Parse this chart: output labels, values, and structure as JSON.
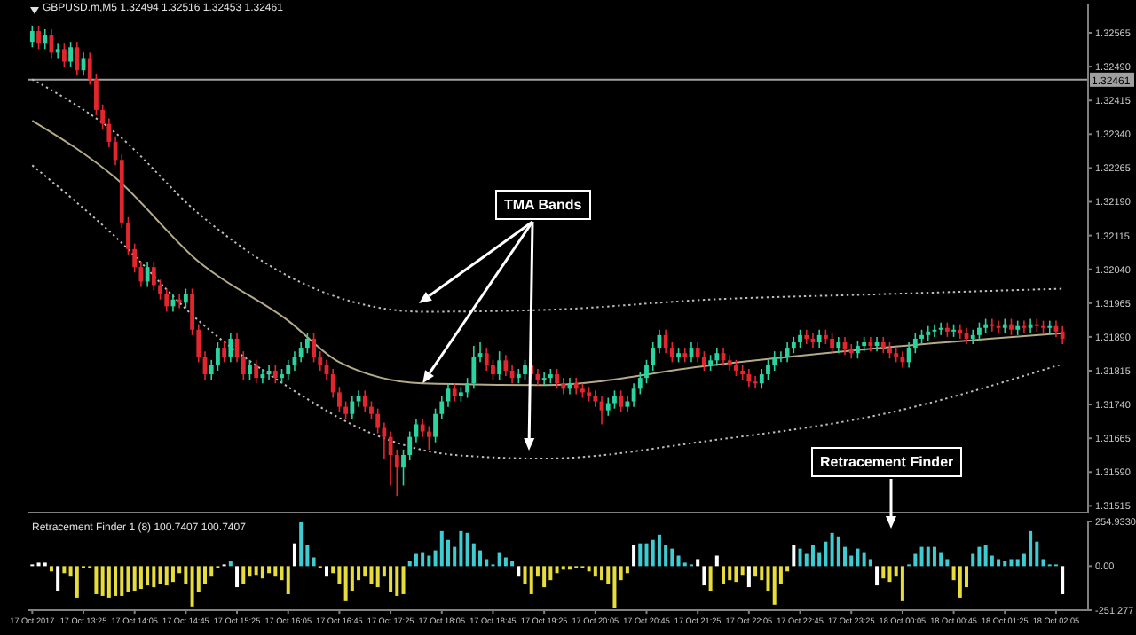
{
  "chart_data": [
    {
      "type": "candlestick",
      "title": "GBPUSD.m,M5 1.32494 1.32516 1.32453 1.32461",
      "x": [
        "2017-10-17T12:45",
        "2017-10-17T12:50",
        "2017-10-17T12:55",
        "2017-10-17T13:00",
        "2017-10-17T13:05",
        "2017-10-17T13:10",
        "2017-10-17T13:15",
        "2017-10-17T13:20",
        "2017-10-17T13:25",
        "2017-10-17T13:30",
        "2017-10-17T13:35",
        "2017-10-17T13:40",
        "2017-10-17T13:45",
        "2017-10-17T13:50",
        "2017-10-17T13:55",
        "2017-10-17T14:00",
        "2017-10-17T14:05",
        "2017-10-17T14:10",
        "2017-10-17T14:15",
        "2017-10-17T14:20",
        "2017-10-17T14:25",
        "2017-10-17T14:30",
        "2017-10-17T14:35",
        "2017-10-17T14:40",
        "2017-10-17T14:45",
        "2017-10-17T14:50",
        "2017-10-17T14:55",
        "2017-10-17T15:00",
        "2017-10-17T15:05",
        "2017-10-17T15:10",
        "2017-10-17T15:15",
        "2017-10-17T15:20",
        "2017-10-17T15:25",
        "2017-10-17T15:30",
        "2017-10-17T15:35",
        "2017-10-17T15:40",
        "2017-10-17T15:45",
        "2017-10-17T15:50",
        "2017-10-17T15:55",
        "2017-10-17T16:00",
        "2017-10-17T16:05",
        "2017-10-17T16:10",
        "2017-10-17T16:15",
        "2017-10-17T16:20",
        "2017-10-17T16:25",
        "2017-10-17T16:30",
        "2017-10-17T16:35",
        "2017-10-17T16:40",
        "2017-10-17T16:45",
        "2017-10-17T16:50",
        "2017-10-17T16:55",
        "2017-10-17T17:00",
        "2017-10-17T17:05",
        "2017-10-17T17:10",
        "2017-10-17T17:15",
        "2017-10-17T17:20",
        "2017-10-17T17:25",
        "2017-10-17T17:30",
        "2017-10-17T17:35",
        "2017-10-17T17:40",
        "2017-10-17T17:45",
        "2017-10-17T17:50",
        "2017-10-17T17:55",
        "2017-10-17T18:00",
        "2017-10-17T18:05",
        "2017-10-17T18:10",
        "2017-10-17T18:15",
        "2017-10-17T18:20",
        "2017-10-17T18:25",
        "2017-10-17T18:30",
        "2017-10-17T18:35",
        "2017-10-17T18:40",
        "2017-10-17T18:45",
        "2017-10-17T18:50",
        "2017-10-17T18:55",
        "2017-10-17T19:00",
        "2017-10-17T19:05",
        "2017-10-17T19:10",
        "2017-10-17T19:15",
        "2017-10-17T19:20",
        "2017-10-17T19:25",
        "2017-10-17T19:30",
        "2017-10-17T19:35",
        "2017-10-17T19:40",
        "2017-10-17T19:45",
        "2017-10-17T19:50",
        "2017-10-17T19:55",
        "2017-10-17T20:00",
        "2017-10-17T20:05",
        "2017-10-17T20:10",
        "2017-10-17T20:15",
        "2017-10-17T20:20",
        "2017-10-17T20:25",
        "2017-10-17T20:30",
        "2017-10-17T20:35",
        "2017-10-17T20:40",
        "2017-10-17T20:45",
        "2017-10-17T20:50",
        "2017-10-17T20:55",
        "2017-10-17T21:00",
        "2017-10-17T21:05",
        "2017-10-17T21:10",
        "2017-10-17T21:15",
        "2017-10-17T21:20",
        "2017-10-17T21:25",
        "2017-10-17T21:30",
        "2017-10-17T21:35",
        "2017-10-17T21:40",
        "2017-10-17T21:45",
        "2017-10-17T21:50",
        "2017-10-17T21:55",
        "2017-10-17T22:00",
        "2017-10-17T22:05",
        "2017-10-17T22:10",
        "2017-10-17T22:15",
        "2017-10-17T22:20",
        "2017-10-17T22:25",
        "2017-10-17T22:30",
        "2017-10-17T22:35",
        "2017-10-17T22:40",
        "2017-10-17T22:45",
        "2017-10-17T22:50",
        "2017-10-17T22:55",
        "2017-10-17T23:00",
        "2017-10-17T23:05",
        "2017-10-17T23:10",
        "2017-10-17T23:15",
        "2017-10-17T23:20",
        "2017-10-17T23:25",
        "2017-10-17T23:30",
        "2017-10-17T23:35",
        "2017-10-17T23:40",
        "2017-10-17T23:45",
        "2017-10-17T23:50",
        "2017-10-17T23:55",
        "2017-10-18T00:00",
        "2017-10-18T00:05",
        "2017-10-18T00:10",
        "2017-10-18T00:15",
        "2017-10-18T00:20",
        "2017-10-18T00:25",
        "2017-10-18T00:30",
        "2017-10-18T00:35",
        "2017-10-18T00:40",
        "2017-10-18T00:45",
        "2017-10-18T00:50",
        "2017-10-18T00:55",
        "2017-10-18T01:00",
        "2017-10-18T01:05",
        "2017-10-18T01:10",
        "2017-10-18T01:15",
        "2017-10-18T01:20",
        "2017-10-18T01:25",
        "2017-10-18T01:30",
        "2017-10-18T01:35",
        "2017-10-18T01:40",
        "2017-10-18T01:45",
        "2017-10-18T01:50",
        "2017-10-18T01:55",
        "2017-10-18T02:00",
        "2017-10-18T02:05",
        "2017-10-18T02:10"
      ],
      "ohlc": [
        [
          1.32545,
          1.32581,
          1.32533,
          1.32569
        ],
        [
          1.32569,
          1.32581,
          1.32529,
          1.32541
        ],
        [
          1.32541,
          1.32573,
          1.32529,
          1.32561
        ],
        [
          1.32561,
          1.32573,
          1.32509,
          1.32521
        ],
        [
          1.32521,
          1.32541,
          1.32509,
          1.32529
        ],
        [
          1.32529,
          1.32541,
          1.32489,
          1.32501
        ],
        [
          1.32501,
          1.32545,
          1.32489,
          1.32533
        ],
        [
          1.32533,
          1.32545,
          1.3247,
          1.32482
        ],
        [
          1.32482,
          1.32521,
          1.3247,
          1.32509
        ],
        [
          1.32509,
          1.32521,
          1.3245,
          1.32462
        ],
        [
          1.32462,
          1.32474,
          1.32382,
          1.32394
        ],
        [
          1.32394,
          1.32406,
          1.32351,
          1.32363
        ],
        [
          1.32363,
          1.32375,
          1.32311,
          1.32323
        ],
        [
          1.32323,
          1.32335,
          1.32271,
          1.32283
        ],
        [
          1.32283,
          1.32295,
          1.32132,
          1.32144
        ],
        [
          1.32144,
          1.32156,
          1.32073,
          1.32085
        ],
        [
          1.32085,
          1.32097,
          1.32033,
          1.32045
        ],
        [
          1.32045,
          1.32057,
          1.32001,
          1.32013
        ],
        [
          1.32013,
          1.32057,
          1.32001,
          1.32045
        ],
        [
          1.32045,
          1.32057,
          1.31993,
          1.32005
        ],
        [
          1.32005,
          1.32017,
          1.31973,
          1.31985
        ],
        [
          1.31985,
          1.31997,
          1.31946,
          1.31958
        ],
        [
          1.31958,
          1.31985,
          1.31946,
          1.31973
        ],
        [
          1.31973,
          1.31985,
          1.31954,
          1.31966
        ],
        [
          1.31966,
          1.31997,
          1.31954,
          1.31985
        ],
        [
          1.31985,
          1.31997,
          1.31894,
          1.31906
        ],
        [
          1.31906,
          1.31918,
          1.31834,
          1.31846
        ],
        [
          1.31846,
          1.31858,
          1.31795,
          1.31807
        ],
        [
          1.31807,
          1.31839,
          1.31795,
          1.31827
        ],
        [
          1.31827,
          1.31878,
          1.31815,
          1.31866
        ],
        [
          1.31866,
          1.31878,
          1.31834,
          1.31846
        ],
        [
          1.31846,
          1.31898,
          1.31834,
          1.31886
        ],
        [
          1.31886,
          1.31898,
          1.31834,
          1.31846
        ],
        [
          1.31846,
          1.31858,
          1.31795,
          1.31807
        ],
        [
          1.31807,
          1.31839,
          1.31795,
          1.31827
        ],
        [
          1.31827,
          1.31839,
          1.31787,
          1.31799
        ],
        [
          1.31799,
          1.31819,
          1.31787,
          1.31807
        ],
        [
          1.31807,
          1.31827,
          1.31795,
          1.31815
        ],
        [
          1.31815,
          1.31827,
          1.31787,
          1.31799
        ],
        [
          1.31799,
          1.31819,
          1.31787,
          1.31807
        ],
        [
          1.31807,
          1.31839,
          1.31795,
          1.31827
        ],
        [
          1.31827,
          1.31858,
          1.31815,
          1.31846
        ],
        [
          1.31846,
          1.31878,
          1.31834,
          1.31866
        ],
        [
          1.31866,
          1.31898,
          1.31854,
          1.31886
        ],
        [
          1.31886,
          1.31898,
          1.31834,
          1.31846
        ],
        [
          1.31846,
          1.31858,
          1.31815,
          1.31827
        ],
        [
          1.31827,
          1.31839,
          1.31795,
          1.31807
        ],
        [
          1.31807,
          1.31819,
          1.31755,
          1.31767
        ],
        [
          1.31767,
          1.31779,
          1.31723,
          1.31735
        ],
        [
          1.31735,
          1.31747,
          1.31707,
          1.31719
        ],
        [
          1.31719,
          1.31759,
          1.31707,
          1.31747
        ],
        [
          1.31747,
          1.31771,
          1.31735,
          1.31759
        ],
        [
          1.31759,
          1.31771,
          1.31723,
          1.31735
        ],
        [
          1.31735,
          1.31747,
          1.31707,
          1.31719
        ],
        [
          1.31719,
          1.31731,
          1.31676,
          1.31688
        ],
        [
          1.31688,
          1.317,
          1.3162,
          1.31668
        ],
        [
          1.31668,
          1.3168,
          1.3156,
          1.31628
        ],
        [
          1.31628,
          1.3164,
          1.31537,
          1.316
        ],
        [
          1.316,
          1.3164,
          1.3156,
          1.31628
        ],
        [
          1.31628,
          1.3168,
          1.31616,
          1.31668
        ],
        [
          1.31668,
          1.31708,
          1.31656,
          1.31696
        ],
        [
          1.31696,
          1.31708,
          1.31668,
          1.3168
        ],
        [
          1.3168,
          1.31692,
          1.3164,
          1.31668
        ],
        [
          1.31668,
          1.31731,
          1.31656,
          1.31719
        ],
        [
          1.31719,
          1.31759,
          1.31707,
          1.31747
        ],
        [
          1.31747,
          1.31787,
          1.31735,
          1.31775
        ],
        [
          1.31775,
          1.31787,
          1.31747,
          1.31759
        ],
        [
          1.31759,
          1.31779,
          1.31747,
          1.31767
        ],
        [
          1.31767,
          1.31799,
          1.31755,
          1.31787
        ],
        [
          1.31787,
          1.3187,
          1.31775,
          1.31846
        ],
        [
          1.31846,
          1.31878,
          1.31834,
          1.31854
        ],
        [
          1.31854,
          1.31866,
          1.31815,
          1.31827
        ],
        [
          1.31827,
          1.31839,
          1.31795,
          1.31807
        ],
        [
          1.31807,
          1.31858,
          1.31795,
          1.31838
        ],
        [
          1.31838,
          1.3185,
          1.31803,
          1.31815
        ],
        [
          1.31815,
          1.31827,
          1.31787,
          1.31799
        ],
        [
          1.31799,
          1.31819,
          1.31787,
          1.31807
        ],
        [
          1.31807,
          1.31839,
          1.31795,
          1.31827
        ],
        [
          1.31827,
          1.31839,
          1.31795,
          1.31807
        ],
        [
          1.31807,
          1.31819,
          1.31783,
          1.31795
        ],
        [
          1.31795,
          1.31811,
          1.31783,
          1.31799
        ],
        [
          1.31799,
          1.31819,
          1.31787,
          1.31807
        ],
        [
          1.31807,
          1.31819,
          1.31775,
          1.31787
        ],
        [
          1.31787,
          1.31799,
          1.31763,
          1.31775
        ],
        [
          1.31775,
          1.31799,
          1.31763,
          1.31787
        ],
        [
          1.31787,
          1.31799,
          1.31763,
          1.31775
        ],
        [
          1.31775,
          1.31787,
          1.31755,
          1.31767
        ],
        [
          1.31767,
          1.31779,
          1.31747,
          1.31759
        ],
        [
          1.31759,
          1.31771,
          1.31735,
          1.31747
        ],
        [
          1.31747,
          1.31759,
          1.31696,
          1.31727
        ],
        [
          1.31727,
          1.31755,
          1.31715,
          1.31743
        ],
        [
          1.31743,
          1.31771,
          1.31731,
          1.31759
        ],
        [
          1.31759,
          1.31771,
          1.31723,
          1.31735
        ],
        [
          1.31735,
          1.31759,
          1.31723,
          1.31747
        ],
        [
          1.31747,
          1.31787,
          1.31735,
          1.31775
        ],
        [
          1.31775,
          1.31811,
          1.31763,
          1.31799
        ],
        [
          1.31799,
          1.31839,
          1.31787,
          1.31827
        ],
        [
          1.31827,
          1.31878,
          1.31815,
          1.31866
        ],
        [
          1.31866,
          1.31906,
          1.31854,
          1.31894
        ],
        [
          1.31894,
          1.31906,
          1.31854,
          1.31866
        ],
        [
          1.31866,
          1.31878,
          1.31834,
          1.31846
        ],
        [
          1.31846,
          1.31866,
          1.31834,
          1.31854
        ],
        [
          1.31854,
          1.31866,
          1.31834,
          1.31846
        ],
        [
          1.31846,
          1.31878,
          1.31834,
          1.31866
        ],
        [
          1.31866,
          1.31878,
          1.31834,
          1.31846
        ],
        [
          1.31846,
          1.31858,
          1.31815,
          1.31827
        ],
        [
          1.31827,
          1.3185,
          1.31815,
          1.31838
        ],
        [
          1.31838,
          1.31866,
          1.31826,
          1.31854
        ],
        [
          1.31854,
          1.31866,
          1.31826,
          1.31838
        ],
        [
          1.31838,
          1.3185,
          1.31815,
          1.31827
        ],
        [
          1.31827,
          1.31839,
          1.31803,
          1.31815
        ],
        [
          1.31815,
          1.31827,
          1.31795,
          1.31807
        ],
        [
          1.31807,
          1.31819,
          1.31779,
          1.31791
        ],
        [
          1.31791,
          1.31803,
          1.31775,
          1.31787
        ],
        [
          1.31787,
          1.31819,
          1.31775,
          1.31807
        ],
        [
          1.31807,
          1.31839,
          1.31795,
          1.31827
        ],
        [
          1.31827,
          1.31858,
          1.31815,
          1.31846
        ],
        [
          1.31846,
          1.31858,
          1.31834,
          1.31846
        ],
        [
          1.31846,
          1.31878,
          1.31834,
          1.31866
        ],
        [
          1.31866,
          1.3189,
          1.31854,
          1.31878
        ],
        [
          1.31878,
          1.31906,
          1.31866,
          1.31894
        ],
        [
          1.31894,
          1.31906,
          1.31874,
          1.31886
        ],
        [
          1.31886,
          1.31898,
          1.31866,
          1.31878
        ],
        [
          1.31878,
          1.31906,
          1.31866,
          1.31894
        ],
        [
          1.31894,
          1.31906,
          1.31874,
          1.31886
        ],
        [
          1.31886,
          1.31898,
          1.31854,
          1.31866
        ],
        [
          1.31866,
          1.3189,
          1.31854,
          1.31878
        ],
        [
          1.31878,
          1.3189,
          1.3185,
          1.31862
        ],
        [
          1.31862,
          1.31874,
          1.31842,
          1.31854
        ],
        [
          1.31854,
          1.31882,
          1.31842,
          1.3187
        ],
        [
          1.3187,
          1.3189,
          1.31858,
          1.31878
        ],
        [
          1.31878,
          1.3189,
          1.31858,
          1.3187
        ],
        [
          1.3187,
          1.3189,
          1.31858,
          1.31878
        ],
        [
          1.31878,
          1.3189,
          1.31854,
          1.31866
        ],
        [
          1.31866,
          1.31878,
          1.31842,
          1.31854
        ],
        [
          1.31854,
          1.31866,
          1.31834,
          1.31846
        ],
        [
          1.31846,
          1.31858,
          1.31822,
          1.31834
        ],
        [
          1.31834,
          1.31878,
          1.31822,
          1.31866
        ],
        [
          1.31866,
          1.31898,
          1.31854,
          1.31886
        ],
        [
          1.31886,
          1.31906,
          1.31874,
          1.31894
        ],
        [
          1.31894,
          1.31914,
          1.31882,
          1.31902
        ],
        [
          1.31902,
          1.31918,
          1.3189,
          1.31906
        ],
        [
          1.31906,
          1.31922,
          1.31894,
          1.3191
        ],
        [
          1.3191,
          1.31922,
          1.3189,
          1.31902
        ],
        [
          1.31902,
          1.31918,
          1.3189,
          1.31906
        ],
        [
          1.31906,
          1.31918,
          1.31886,
          1.31898
        ],
        [
          1.31898,
          1.3191,
          1.31874,
          1.31886
        ],
        [
          1.31886,
          1.31906,
          1.31874,
          1.31894
        ],
        [
          1.31894,
          1.31922,
          1.31882,
          1.3191
        ],
        [
          1.3191,
          1.3193,
          1.31898,
          1.31918
        ],
        [
          1.31918,
          1.3193,
          1.31902,
          1.31914
        ],
        [
          1.31914,
          1.31926,
          1.31898,
          1.3191
        ],
        [
          1.3191,
          1.3193,
          1.31898,
          1.31918
        ],
        [
          1.31918,
          1.3193,
          1.31894,
          1.31906
        ],
        [
          1.31906,
          1.31926,
          1.31894,
          1.31914
        ],
        [
          1.31914,
          1.31926,
          1.31898,
          1.3191
        ],
        [
          1.3191,
          1.3193,
          1.31898,
          1.31918
        ],
        [
          1.31918,
          1.3193,
          1.31902,
          1.31914
        ],
        [
          1.31914,
          1.31926,
          1.31898,
          1.3191
        ],
        [
          1.3191,
          1.31926,
          1.31898,
          1.31914
        ],
        [
          1.31914,
          1.31926,
          1.3189,
          1.31902
        ],
        [
          1.31902,
          1.31914,
          1.31874,
          1.31886
        ]
      ],
      "series": [
        {
          "type": "line",
          "color": "#bdbdbd",
          "line_style": "dotted",
          "x": [
            "2017-10-17T12:45",
            "2017-10-17T13:50",
            "2017-10-17T14:55",
            "2017-10-17T16:05",
            "2017-10-17T17:10",
            "2017-10-17T17:50",
            "2017-10-17T19:25",
            "2017-10-17T21:35",
            "2017-10-17T23:50",
            "2017-10-18T02:10"
          ],
          "values": [
            1.32462,
            1.32343,
            1.32164,
            1.32025,
            1.31958,
            1.31946,
            1.3195,
            1.31973,
            1.31985,
            1.31997
          ]
        },
        {
          "type": "line",
          "color": "#b5aa86",
          "line_style": "solid",
          "x": [
            "2017-10-17T12:45",
            "2017-10-17T13:50",
            "2017-10-17T14:55",
            "2017-10-17T16:05",
            "2017-10-17T16:45",
            "2017-10-17T17:50",
            "2017-10-17T19:25",
            "2017-10-17T21:35",
            "2017-10-17T23:50",
            "2017-10-18T02:10"
          ],
          "values": [
            1.3237,
            1.32243,
            1.32057,
            1.31926,
            1.31834,
            1.31787,
            1.31783,
            1.31827,
            1.31866,
            1.31898
          ]
        },
        {
          "type": "line",
          "color": "#bdbdbd",
          "line_style": "dotted",
          "x": [
            "2017-10-17T12:45",
            "2017-10-17T13:50",
            "2017-10-17T14:55",
            "2017-10-17T16:05",
            "2017-10-17T17:10",
            "2017-10-17T18:15",
            "2017-10-17T19:25",
            "2017-10-17T21:35",
            "2017-10-17T23:50",
            "2017-10-18T02:10"
          ],
          "values": [
            1.32271,
            1.32112,
            1.31926,
            1.31779,
            1.31676,
            1.31628,
            1.3162,
            1.3166,
            1.31719,
            1.3183
          ]
        }
      ],
      "xlim": [
        "2017-10-17T12:42",
        "2017-10-18T02:30"
      ],
      "ylim": [
        1.315,
        1.3263
      ],
      "yticks": [
        1.32565,
        {
          "value": 1.3249,
          "label": "1.32490"
        },
        1.32415,
        {
          "value": 1.3234,
          "label": "1.32340"
        },
        1.32265,
        {
          "value": 1.3219,
          "label": "1.32190"
        },
        1.32115,
        {
          "value": 1.3204,
          "label": "1.32040"
        },
        1.31965,
        {
          "value": 1.3189,
          "label": "1.31890"
        },
        1.31815,
        {
          "value": 1.3174,
          "label": "1.31740"
        },
        1.31665,
        {
          "value": 1.3159,
          "label": "1.31590"
        },
        1.31515
      ],
      "ref_lines": [
        {
          "axis": "y",
          "value": 1.32461,
          "label": "1.32461",
          "color": "#a0a0a0"
        }
      ],
      "annotations": [
        {
          "text": "TMA Bands",
          "x": "2017-10-17T17:50",
          "y": 1.31787
        }
      ],
      "tick_labels": "y"
    },
    {
      "type": "bar",
      "title": "Retracement Finder 1 (8) 100.7407 100.7407",
      "x": [
        "2017-10-17T12:45",
        "2017-10-17T12:50",
        "2017-10-17T12:55",
        "2017-10-17T13:00",
        "2017-10-17T13:05",
        "2017-10-17T13:10",
        "2017-10-17T13:15",
        "2017-10-17T13:20",
        "2017-10-17T13:25",
        "2017-10-17T13:30",
        "2017-10-17T13:35",
        "2017-10-17T13:40",
        "2017-10-17T13:45",
        "2017-10-17T13:50",
        "2017-10-17T13:55",
        "2017-10-17T14:00",
        "2017-10-17T14:05",
        "2017-10-17T14:10",
        "2017-10-17T14:15",
        "2017-10-17T14:20",
        "2017-10-17T14:25",
        "2017-10-17T14:30",
        "2017-10-17T14:35",
        "2017-10-17T14:40",
        "2017-10-17T14:45",
        "2017-10-17T14:50",
        "2017-10-17T14:55",
        "2017-10-17T15:00",
        "2017-10-17T15:05",
        "2017-10-17T15:10",
        "2017-10-17T15:15",
        "2017-10-17T15:20",
        "2017-10-17T15:25",
        "2017-10-17T15:30",
        "2017-10-17T15:35",
        "2017-10-17T15:40",
        "2017-10-17T15:45",
        "2017-10-17T15:50",
        "2017-10-17T15:55",
        "2017-10-17T16:00",
        "2017-10-17T16:05",
        "2017-10-17T16:10",
        "2017-10-17T16:15",
        "2017-10-17T16:20",
        "2017-10-17T16:25",
        "2017-10-17T16:30",
        "2017-10-17T16:35",
        "2017-10-17T16:40",
        "2017-10-17T16:45",
        "2017-10-17T16:50",
        "2017-10-17T16:55",
        "2017-10-17T17:00",
        "2017-10-17T17:05",
        "2017-10-17T17:10",
        "2017-10-17T17:15",
        "2017-10-17T17:20",
        "2017-10-17T17:25",
        "2017-10-17T17:30",
        "2017-10-17T17:35",
        "2017-10-17T17:40",
        "2017-10-17T17:45",
        "2017-10-17T17:50",
        "2017-10-17T17:55",
        "2017-10-17T18:00",
        "2017-10-17T18:05",
        "2017-10-17T18:10",
        "2017-10-17T18:15",
        "2017-10-17T18:20",
        "2017-10-17T18:25",
        "2017-10-17T18:30",
        "2017-10-17T18:35",
        "2017-10-17T18:40",
        "2017-10-17T18:45",
        "2017-10-17T18:50",
        "2017-10-17T18:55",
        "2017-10-17T19:00",
        "2017-10-17T19:05",
        "2017-10-17T19:10",
        "2017-10-17T19:15",
        "2017-10-17T19:20",
        "2017-10-17T19:25",
        "2017-10-17T19:30",
        "2017-10-17T19:35",
        "2017-10-17T19:40",
        "2017-10-17T19:45",
        "2017-10-17T19:50",
        "2017-10-17T19:55",
        "2017-10-17T20:00",
        "2017-10-17T20:05",
        "2017-10-17T20:10",
        "2017-10-17T20:15",
        "2017-10-17T20:20",
        "2017-10-17T20:25",
        "2017-10-17T20:30",
        "2017-10-17T20:35",
        "2017-10-17T20:40",
        "2017-10-17T20:45",
        "2017-10-17T20:50",
        "2017-10-17T20:55",
        "2017-10-17T21:00",
        "2017-10-17T21:05",
        "2017-10-17T21:10",
        "2017-10-17T21:15",
        "2017-10-17T21:20",
        "2017-10-17T21:25",
        "2017-10-17T21:30",
        "2017-10-17T21:35",
        "2017-10-17T21:40",
        "2017-10-17T21:45",
        "2017-10-17T21:50",
        "2017-10-17T21:55",
        "2017-10-17T22:00",
        "2017-10-17T22:05",
        "2017-10-17T22:10",
        "2017-10-17T22:15",
        "2017-10-17T22:20",
        "2017-10-17T22:25",
        "2017-10-17T22:30",
        "2017-10-17T22:35",
        "2017-10-17T22:40",
        "2017-10-17T22:45",
        "2017-10-17T22:50",
        "2017-10-17T22:55",
        "2017-10-17T23:00",
        "2017-10-17T23:05",
        "2017-10-17T23:10",
        "2017-10-17T23:15",
        "2017-10-17T23:20",
        "2017-10-17T23:25",
        "2017-10-17T23:30",
        "2017-10-17T23:35",
        "2017-10-17T23:40",
        "2017-10-17T23:45",
        "2017-10-17T23:50",
        "2017-10-17T23:55",
        "2017-10-18T00:00",
        "2017-10-18T00:05",
        "2017-10-18T00:10",
        "2017-10-18T00:15",
        "2017-10-18T00:20",
        "2017-10-18T00:25",
        "2017-10-18T00:30",
        "2017-10-18T00:35",
        "2017-10-18T00:40",
        "2017-10-18T00:45",
        "2017-10-18T00:50",
        "2017-10-18T00:55",
        "2017-10-18T01:00",
        "2017-10-18T01:05",
        "2017-10-18T01:10",
        "2017-10-18T01:15",
        "2017-10-18T01:20",
        "2017-10-18T01:25",
        "2017-10-18T01:30",
        "2017-10-18T01:35",
        "2017-10-18T01:40",
        "2017-10-18T01:45",
        "2017-10-18T01:50",
        "2017-10-18T01:55",
        "2017-10-18T02:00",
        "2017-10-18T02:05",
        "2017-10-18T02:10"
      ],
      "values": [
        10,
        20,
        20,
        -30,
        -140,
        -40,
        -60,
        -180,
        -10,
        -10,
        -160,
        -170,
        -180,
        -170,
        -170,
        -150,
        -140,
        -130,
        -110,
        -120,
        -100,
        -110,
        -90,
        -40,
        -100,
        -230,
        -150,
        -100,
        -60,
        -10,
        10,
        30,
        -120,
        -100,
        -60,
        -50,
        -70,
        -40,
        -60,
        -80,
        -160,
        130,
        250,
        120,
        50,
        -10,
        -60,
        -40,
        -100,
        -200,
        -140,
        -80,
        -60,
        -100,
        -120,
        -60,
        -150,
        -170,
        -160,
        30,
        70,
        80,
        60,
        90,
        200,
        150,
        110,
        200,
        190,
        130,
        90,
        40,
        10,
        80,
        50,
        30,
        -60,
        -100,
        -160,
        -60,
        -120,
        -80,
        -40,
        -20,
        -20,
        -10,
        -10,
        -30,
        -60,
        -80,
        -100,
        -240,
        -80,
        -40,
        120,
        130,
        130,
        150,
        180,
        120,
        100,
        60,
        20,
        10,
        40,
        -110,
        -140,
        60,
        -100,
        -80,
        -90,
        -50,
        -120,
        -60,
        -80,
        -140,
        -220,
        -100,
        -30,
        120,
        100,
        70,
        120,
        80,
        140,
        190,
        170,
        110,
        60,
        100,
        80,
        40,
        -110,
        -70,
        -90,
        -60,
        -200,
        10,
        70,
        110,
        110,
        110,
        80,
        40,
        -80,
        -180,
        -120,
        70,
        110,
        120,
        60,
        40,
        30,
        40,
        40,
        70,
        200,
        140,
        40,
        10,
        10,
        -160
      ],
      "colors": [
        "#ffffff",
        "#ffffff",
        "#ffffff",
        "#e6dc3a",
        "#ffffff",
        "#e6dc3a",
        "#e6dc3a",
        "#e6dc3a",
        "#e6dc3a",
        "#e6dc3a",
        "#e6dc3a",
        "#e6dc3a",
        "#e6dc3a",
        "#e6dc3a",
        "#e6dc3a",
        "#e6dc3a",
        "#e6dc3a",
        "#e6dc3a",
        "#e6dc3a",
        "#e6dc3a",
        "#e6dc3a",
        "#e6dc3a",
        "#e6dc3a",
        "#e6dc3a",
        "#e6dc3a",
        "#e6dc3a",
        "#e6dc3a",
        "#e6dc3a",
        "#e6dc3a",
        "#e6dc3a",
        "#ffffff",
        "#3ecbd2",
        "#ffffff",
        "#e6dc3a",
        "#e6dc3a",
        "#e6dc3a",
        "#e6dc3a",
        "#e6dc3a",
        "#e6dc3a",
        "#e6dc3a",
        "#e6dc3a",
        "#ffffff",
        "#3ecbd2",
        "#3ecbd2",
        "#3ecbd2",
        "#e6dc3a",
        "#ffffff",
        "#e6dc3a",
        "#e6dc3a",
        "#e6dc3a",
        "#e6dc3a",
        "#e6dc3a",
        "#e6dc3a",
        "#e6dc3a",
        "#e6dc3a",
        "#e6dc3a",
        "#e6dc3a",
        "#e6dc3a",
        "#e6dc3a",
        "#3ecbd2",
        "#3ecbd2",
        "#3ecbd2",
        "#3ecbd2",
        "#3ecbd2",
        "#3ecbd2",
        "#3ecbd2",
        "#3ecbd2",
        "#3ecbd2",
        "#3ecbd2",
        "#3ecbd2",
        "#3ecbd2",
        "#3ecbd2",
        "#3ecbd2",
        "#3ecbd2",
        "#3ecbd2",
        "#3ecbd2",
        "#ffffff",
        "#e6dc3a",
        "#e6dc3a",
        "#e6dc3a",
        "#e6dc3a",
        "#e6dc3a",
        "#e6dc3a",
        "#e6dc3a",
        "#e6dc3a",
        "#e6dc3a",
        "#e6dc3a",
        "#e6dc3a",
        "#e6dc3a",
        "#e6dc3a",
        "#e6dc3a",
        "#e6dc3a",
        "#e6dc3a",
        "#e6dc3a",
        "#ffffff",
        "#3ecbd2",
        "#3ecbd2",
        "#3ecbd2",
        "#3ecbd2",
        "#3ecbd2",
        "#3ecbd2",
        "#3ecbd2",
        "#3ecbd2",
        "#3ecbd2",
        "#ffffff",
        "#ffffff",
        "#e6dc3a",
        "#ffffff",
        "#e6dc3a",
        "#e6dc3a",
        "#e6dc3a",
        "#e6dc3a",
        "#ffffff",
        "#e6dc3a",
        "#e6dc3a",
        "#e6dc3a",
        "#e6dc3a",
        "#e6dc3a",
        "#e6dc3a",
        "#ffffff",
        "#3ecbd2",
        "#3ecbd2",
        "#3ecbd2",
        "#3ecbd2",
        "#3ecbd2",
        "#3ecbd2",
        "#3ecbd2",
        "#3ecbd2",
        "#3ecbd2",
        "#3ecbd2",
        "#3ecbd2",
        "#3ecbd2",
        "#ffffff",
        "#e6dc3a",
        "#e6dc3a",
        "#e6dc3a",
        "#e6dc3a",
        "#3ecbd2",
        "#3ecbd2",
        "#3ecbd2",
        "#3ecbd2",
        "#3ecbd2",
        "#3ecbd2",
        "#3ecbd2",
        "#e6dc3a",
        "#e6dc3a",
        "#e6dc3a",
        "#3ecbd2",
        "#3ecbd2",
        "#3ecbd2",
        "#3ecbd2",
        "#3ecbd2",
        "#3ecbd2",
        "#3ecbd2",
        "#3ecbd2",
        "#3ecbd2",
        "#3ecbd2",
        "#3ecbd2",
        "#3ecbd2",
        "#3ecbd2",
        "#3ecbd2",
        "#ffffff"
      ],
      "xlim": [
        "2017-10-17T12:42",
        "2017-10-18T02:30"
      ],
      "xticks": [
        {
          "value": "2017-10-17T12:45",
          "label": "17 Oct 2017"
        },
        {
          "value": "2017-10-17T13:25",
          "label": "17 Oct 13:25"
        },
        {
          "value": "2017-10-17T14:05",
          "label": "17 Oct 14:05"
        },
        {
          "value": "2017-10-17T14:45",
          "label": "17 Oct 14:45"
        },
        {
          "value": "2017-10-17T15:25",
          "label": "17 Oct 15:25"
        },
        {
          "value": "2017-10-17T16:05",
          "label": "17 Oct 16:05"
        },
        {
          "value": "2017-10-17T16:45",
          "label": "17 Oct 16:45"
        },
        {
          "value": "2017-10-17T17:25",
          "label": "17 Oct 17:25"
        },
        {
          "value": "2017-10-17T18:05",
          "label": "17 Oct 18:05"
        },
        {
          "value": "2017-10-17T18:45",
          "label": "17 Oct 18:45"
        },
        {
          "value": "2017-10-17T19:25",
          "label": "17 Oct 19:25"
        },
        {
          "value": "2017-10-17T20:05",
          "label": "17 Oct 20:05"
        },
        {
          "value": "2017-10-17T20:45",
          "label": "17 Oct 20:45"
        },
        {
          "value": "2017-10-17T21:25",
          "label": "17 Oct 21:25"
        },
        {
          "value": "2017-10-17T22:05",
          "label": "17 Oct 22:05"
        },
        {
          "value": "2017-10-17T22:45",
          "label": "17 Oct 22:45"
        },
        {
          "value": "2017-10-17T23:25",
          "label": "17 Oct 23:25"
        },
        {
          "value": "2017-10-18T00:05",
          "label": "18 Oct 00:05"
        },
        {
          "value": "2017-10-18T00:45",
          "label": "18 Oct 00:45"
        },
        {
          "value": "2017-10-18T01:25",
          "label": "18 Oct 01:25"
        },
        {
          "value": "2017-10-18T02:05",
          "label": "18 Oct 02:05"
        }
      ],
      "ylim": [
        -251.277,
        254.933
      ],
      "yticks": [
        {
          "value": 254.933,
          "label": "254.9330"
        },
        {
          "value": 0,
          "label": "0.00"
        },
        {
          "value": -251.277,
          "label": "-251.277"
        }
      ],
      "annotations": [
        "Retracement Finder"
      ]
    }
  ]
}
